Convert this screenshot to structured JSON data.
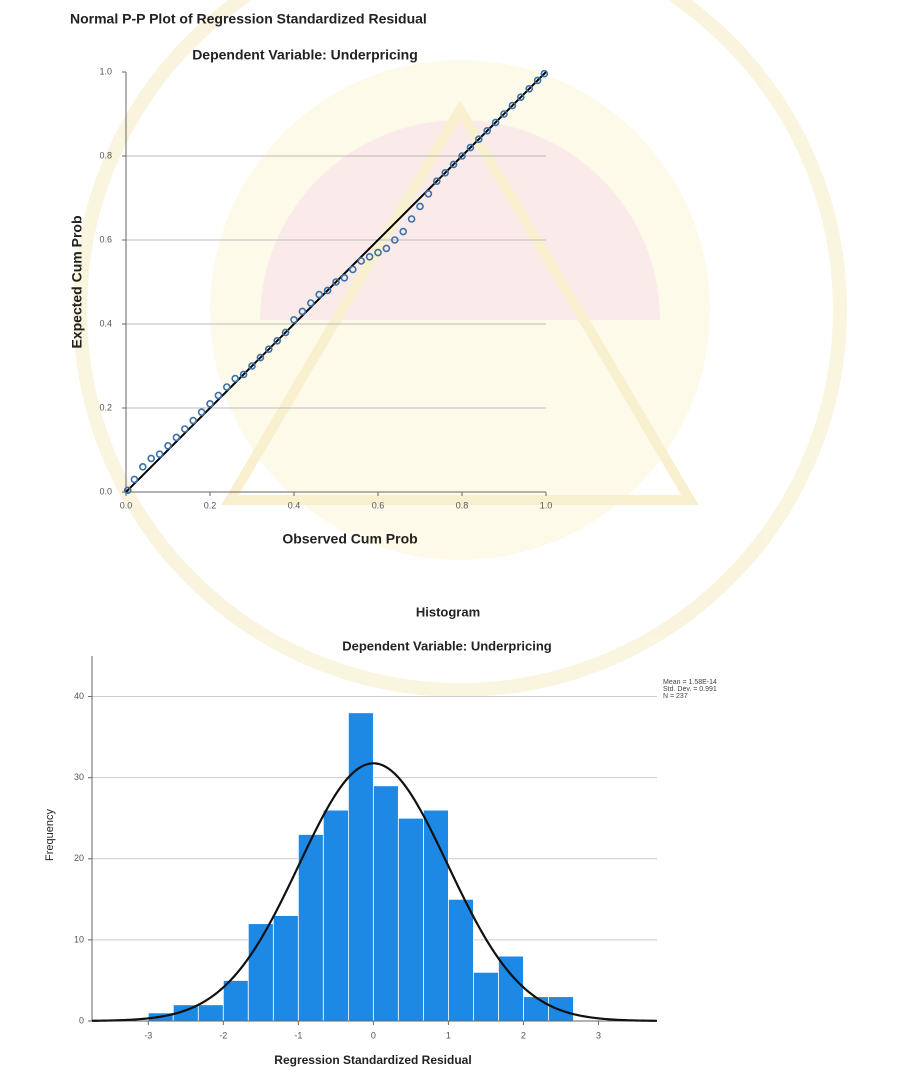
{
  "chart_data": [
    {
      "type": "scatter",
      "title": "Normal P-P Plot of Regression Standardized Residual",
      "subtitle": "Dependent Variable: Underpricing",
      "x_label": "Observed Cum Prob",
      "y_label": "Expected Cum Prob",
      "xlim": [
        0,
        1
      ],
      "ylim": [
        0,
        1
      ],
      "xticks": [
        {
          "value": 0,
          "label": "0.0"
        },
        0.2,
        0.4,
        0.6,
        0.8,
        {
          "value": 1,
          "label": "1.0"
        }
      ],
      "yticks": [
        {
          "value": 0,
          "label": "0.0"
        },
        0.2,
        0.4,
        0.6,
        0.8,
        {
          "value": 1,
          "label": "1.0"
        }
      ],
      "grid": true,
      "color": "#3b6fa8",
      "x": [
        0.004,
        0.02,
        0.04,
        0.06,
        0.08,
        0.1,
        0.12,
        0.14,
        0.16,
        0.18,
        0.2,
        0.22,
        0.24,
        0.26,
        0.28,
        0.3,
        0.32,
        0.34,
        0.36,
        0.38,
        0.4,
        0.42,
        0.44,
        0.46,
        0.48,
        0.5,
        0.52,
        0.54,
        0.56,
        0.58,
        0.6,
        0.62,
        0.64,
        0.66,
        0.68,
        0.7,
        0.72,
        0.74,
        0.76,
        0.78,
        0.8,
        0.82,
        0.84,
        0.86,
        0.88,
        0.9,
        0.92,
        0.94,
        0.96,
        0.98,
        0.996
      ],
      "y": [
        0.004,
        0.03,
        0.06,
        0.08,
        0.09,
        0.11,
        0.13,
        0.15,
        0.17,
        0.19,
        0.21,
        0.23,
        0.25,
        0.27,
        0.28,
        0.3,
        0.32,
        0.34,
        0.36,
        0.38,
        0.41,
        0.43,
        0.45,
        0.47,
        0.48,
        0.5,
        0.51,
        0.53,
        0.55,
        0.56,
        0.57,
        0.58,
        0.6,
        0.62,
        0.65,
        0.68,
        0.71,
        0.74,
        0.76,
        0.78,
        0.8,
        0.82,
        0.84,
        0.86,
        0.88,
        0.9,
        0.92,
        0.94,
        0.96,
        0.98,
        0.996
      ]
    },
    {
      "type": "histogram",
      "title": "Histogram",
      "subtitle": "Dependent Variable: Underpricing",
      "x_label": "Regression Standardized Residual",
      "y_label": "Frequency",
      "xlim": [
        -3.75,
        3.78
      ],
      "ylim": [
        0,
        45
      ],
      "xticks": [
        -3,
        -2,
        -1,
        0,
        1,
        2,
        3
      ],
      "yticks": [
        0,
        10,
        20,
        30,
        40
      ],
      "grid": true,
      "color": "#1e88e5",
      "curve_color": "#111111",
      "bins": [
        -3,
        -2.667,
        -2.333,
        -2,
        -1.667,
        -1.333,
        -1,
        -0.667,
        -0.333,
        0,
        0.333,
        0.667,
        1,
        1.333,
        1.667,
        2,
        2.333,
        2.667
      ],
      "values": [
        1,
        2,
        2,
        5,
        12,
        13,
        23,
        26,
        38,
        29,
        25,
        26,
        15,
        6,
        8,
        3,
        3
      ],
      "stats": {
        "mean": {
          "value": 1.58e-14,
          "label": "Mean = 1.58E-14"
        },
        "std_dev": {
          "value": 0.991,
          "label": "Std. Dev. = 0.991"
        },
        "n": {
          "value": 237,
          "label": "N = 237"
        }
      }
    }
  ]
}
